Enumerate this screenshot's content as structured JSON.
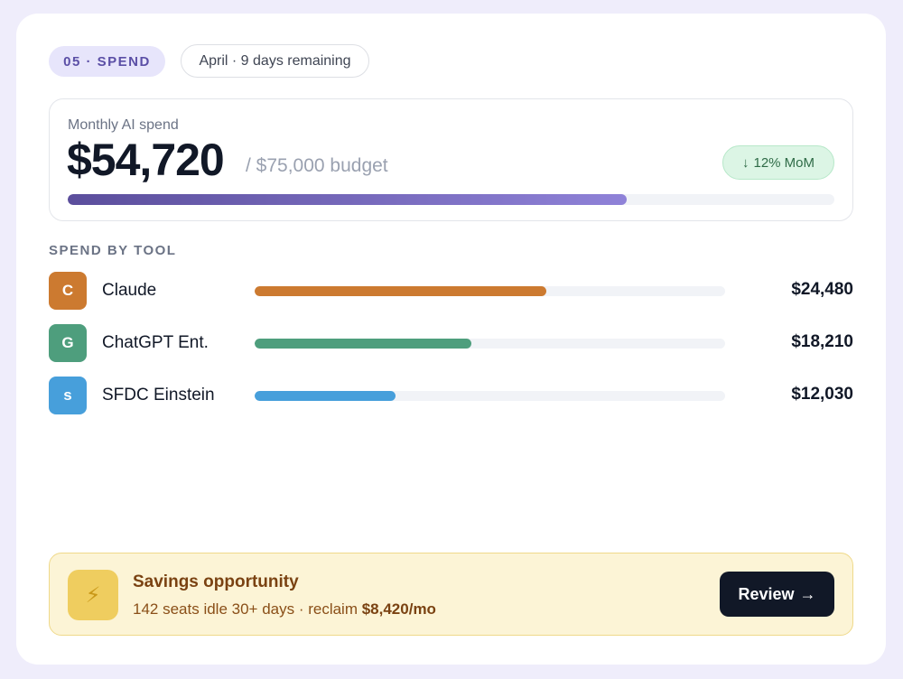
{
  "header": {
    "step_label": "05 · SPEND",
    "period_label": "April · 9 days remaining"
  },
  "spend": {
    "label": "Monthly AI spend",
    "amount": "$54,720",
    "budget_text": "/ $75,000 budget",
    "budget_used_fraction": 0.7296,
    "mom_arrow": "↓",
    "mom_text": "12% MoM",
    "colors": {
      "progress_start": "#5b4e9c",
      "progress_end": "#8f82d8",
      "mom_badge_bg": "#dcf5e5"
    }
  },
  "tools": {
    "section_title": "SPEND BY TOOL",
    "items": [
      {
        "initial": "C",
        "name": "Claude",
        "amount": "$24,480",
        "share_fraction": 0.62,
        "color": "#cc7a30"
      },
      {
        "initial": "G",
        "name": "ChatGPT Ent.",
        "amount": "$18,210",
        "share_fraction": 0.46,
        "color": "#4e9e7d"
      },
      {
        "initial": "s",
        "name": "SFDC Einstein",
        "amount": "$12,030",
        "share_fraction": 0.3,
        "color": "#479fdb"
      }
    ]
  },
  "savings": {
    "icon": "lightning-icon",
    "icon_glyph": "⚡",
    "title": "Savings opportunity",
    "detail_text": "142 seats idle 30+ days · reclaim ",
    "detail_amount": "$8,420/mo",
    "button_label": "Review",
    "button_arrow": "→"
  }
}
